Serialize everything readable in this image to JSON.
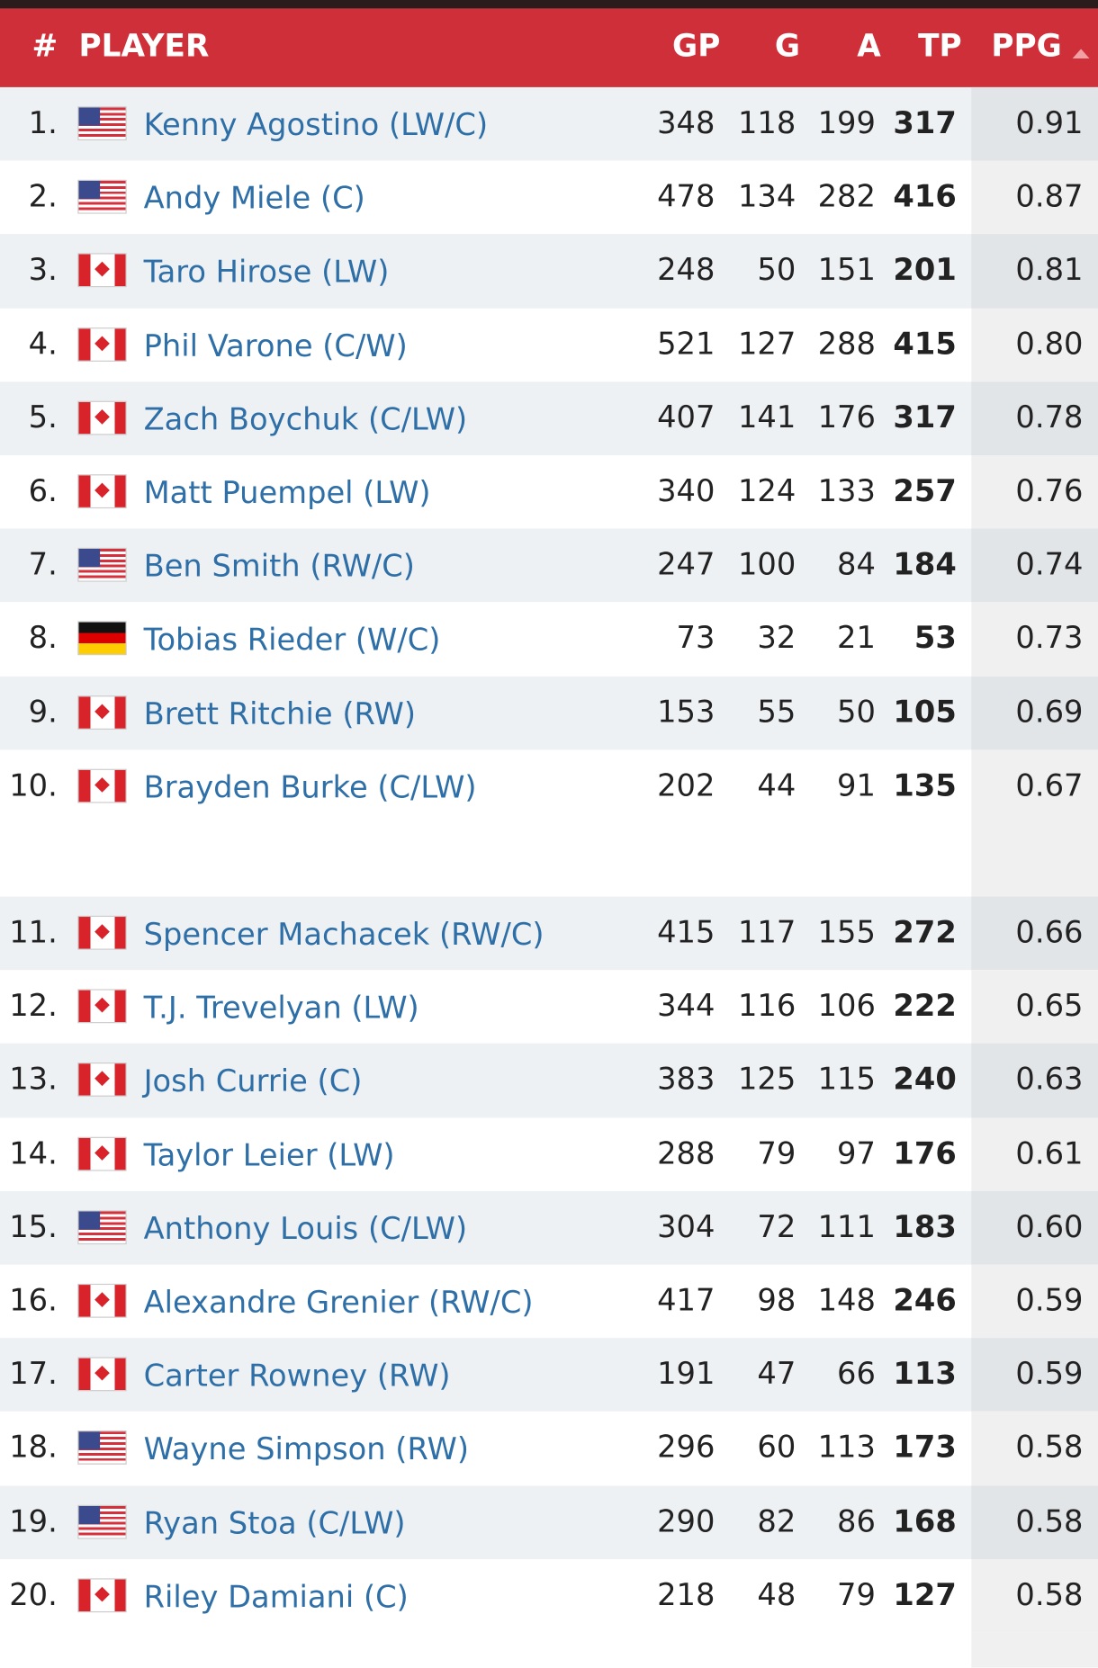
{
  "table": {
    "header": [
      "#",
      "PLAYER",
      "GP",
      "G",
      "A",
      "TP",
      "PPG"
    ],
    "rows": [
      [
        "1.",
        "Kenny Agostino (LW/C)",
        348,
        118,
        199,
        317,
        "0.91"
      ],
      [
        "2.",
        "Andy Miele (C)",
        478,
        134,
        282,
        416,
        "0.87"
      ],
      [
        "3.",
        "Taro Hirose (LW)",
        248,
        50,
        151,
        201,
        "0.81"
      ],
      [
        "4.",
        "Phil Varone (C/W)",
        521,
        127,
        288,
        415,
        "0.80"
      ],
      [
        "5.",
        "Zach Boychuk (C/LW)",
        407,
        141,
        176,
        317,
        "0.78"
      ],
      [
        "6.",
        "Matt Puempel (LW)",
        340,
        124,
        133,
        257,
        "0.76"
      ],
      [
        "7.",
        "Ben Smith (RW/C)",
        247,
        100,
        84,
        184,
        "0.74"
      ],
      [
        "8.",
        "Tobias Rieder (W/C)",
        73,
        32,
        21,
        53,
        "0.73"
      ],
      [
        "9.",
        "Brett Ritchie (RW)",
        153,
        55,
        50,
        105,
        "0.69"
      ],
      [
        "10.",
        "Brayden Burke (C/LW)",
        202,
        44,
        91,
        135,
        "0.67"
      ],
      [
        "11.",
        "Spencer Machacek (RW/C)",
        415,
        117,
        155,
        272,
        "0.66"
      ],
      [
        "12.",
        "T.J. Trevelyan (LW)",
        344,
        116,
        106,
        222,
        "0.65"
      ],
      [
        "13.",
        "Josh Currie (C)",
        383,
        125,
        115,
        240,
        "0.63"
      ],
      [
        "14.",
        "Taylor Leier (LW)",
        288,
        79,
        97,
        176,
        "0.61"
      ],
      [
        "15.",
        "Anthony Louis (C/LW)",
        304,
        72,
        111,
        183,
        "0.60"
      ],
      [
        "16.",
        "Alexandre Grenier (RW/C)",
        417,
        98,
        148,
        246,
        "0.59"
      ],
      [
        "17.",
        "Carter Rowney (RW)",
        191,
        47,
        66,
        113,
        "0.59"
      ],
      [
        "18.",
        "Wayne Simpson (RW)",
        296,
        60,
        113,
        173,
        "0.58"
      ],
      [
        "19.",
        "Ryan Stoa (C/LW)",
        290,
        82,
        86,
        168,
        "0.58"
      ],
      [
        "20.",
        "Riley Damiani (C)",
        218,
        48,
        79,
        127,
        "0.58"
      ]
    ]
  }
}
